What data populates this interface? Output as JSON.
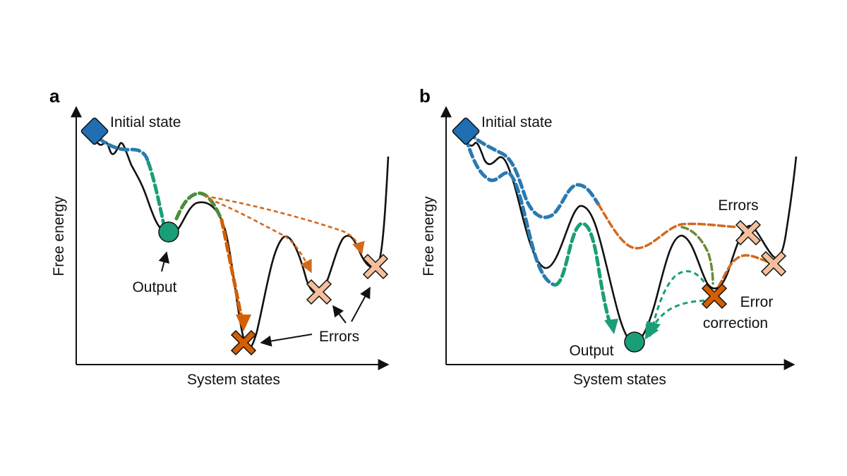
{
  "panel_a": {
    "panel_label": "a",
    "initial_state": "Initial state",
    "output": "Output",
    "errors": "Errors",
    "x_axis": "System states",
    "y_axis": "Free energy"
  },
  "panel_b": {
    "panel_label": "b",
    "initial_state": "Initial state",
    "output": "Output",
    "errors": "Errors",
    "error_correction_line1": "Error",
    "error_correction_line2": "correction",
    "x_axis": "System states",
    "y_axis": "Free energy"
  },
  "colors": {
    "landscape": "#111111",
    "initial_state": "#1f6fb2",
    "output": "#1a9e77",
    "error_strong": "#d55e00",
    "error_light": "#f6bf9c",
    "path_blue": "#2a7ab0",
    "path_green": "#1a9e77",
    "path_orange": "#d2691e"
  }
}
